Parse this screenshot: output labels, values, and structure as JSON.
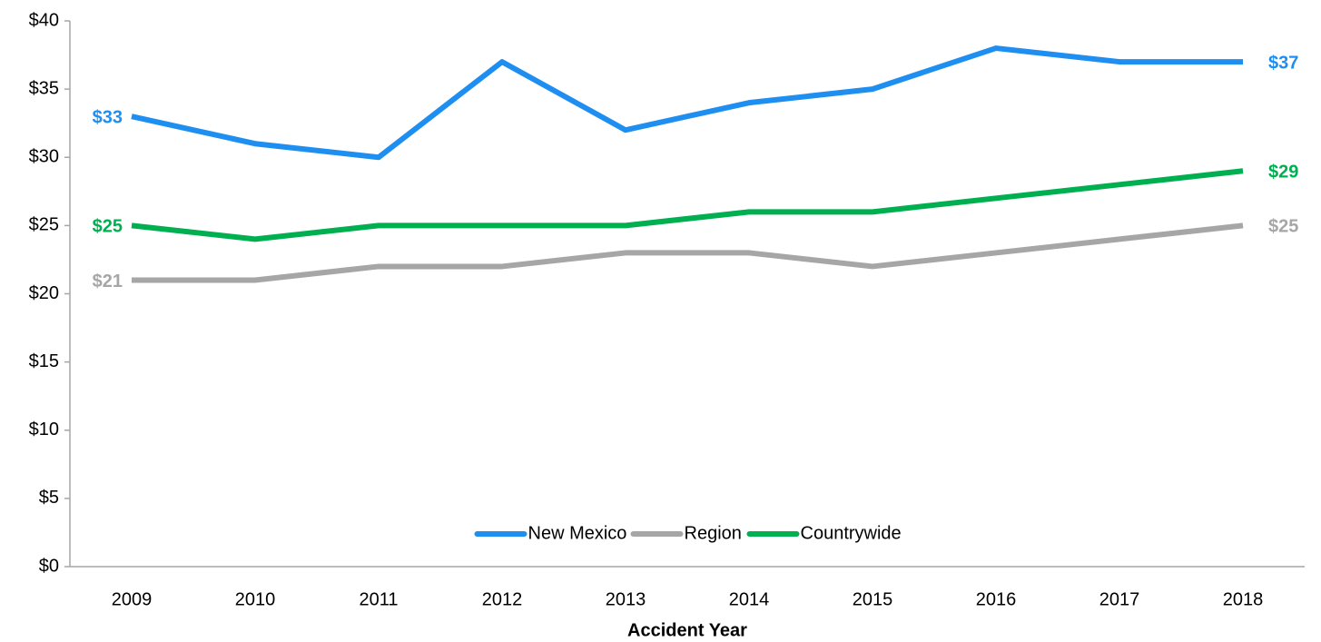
{
  "chart_data": {
    "type": "line",
    "x_label": "Accident Year",
    "categories": [
      "2009",
      "2010",
      "2011",
      "2012",
      "2013",
      "2014",
      "2015",
      "2016",
      "2017",
      "2018"
    ],
    "series": [
      {
        "name": "New Mexico",
        "color": "#1e8ff0",
        "values": [
          33,
          31,
          30,
          37,
          32,
          34,
          35,
          38,
          37,
          37
        ],
        "value_labels": [
          "$33",
          null,
          null,
          null,
          null,
          null,
          null,
          null,
          null,
          "$37"
        ]
      },
      {
        "name": "Region",
        "color": "#a6a6a6",
        "values": [
          21,
          21,
          22,
          22,
          23,
          23,
          22,
          23,
          24,
          25
        ],
        "value_labels": [
          "$21",
          null,
          null,
          null,
          null,
          null,
          null,
          null,
          null,
          "$25"
        ]
      },
      {
        "name": "Countrywide",
        "color": "#00b050",
        "values": [
          25,
          24,
          25,
          25,
          25,
          26,
          26,
          27,
          28,
          29
        ],
        "value_labels": [
          "$25",
          null,
          null,
          null,
          null,
          null,
          null,
          null,
          null,
          "$29"
        ]
      }
    ],
    "ylim": [
      0,
      40
    ],
    "yticks": [
      {
        "value": 0,
        "label": "$0"
      },
      {
        "value": 5,
        "label": "$5"
      },
      {
        "value": 10,
        "label": "$10"
      },
      {
        "value": 15,
        "label": "$15"
      },
      {
        "value": 20,
        "label": "$20"
      },
      {
        "value": 25,
        "label": "$25"
      },
      {
        "value": 30,
        "label": "$30"
      },
      {
        "value": 35,
        "label": "$35"
      },
      {
        "value": 40,
        "label": "$40"
      }
    ],
    "grid": false,
    "legend": "bottom"
  }
}
